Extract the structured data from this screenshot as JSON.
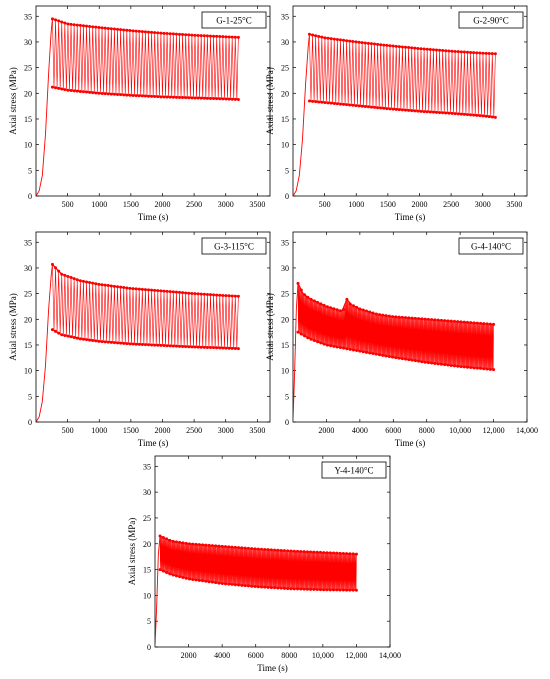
{
  "chart_data": [
    {
      "type": "line",
      "panel": "G-1-25°C",
      "xlabel": "Time (s)",
      "ylabel": "Axial stress (MPa)",
      "xlim": [
        0,
        3700
      ],
      "ylim": [
        0,
        37
      ],
      "xticks": [
        500,
        1000,
        1500,
        2000,
        2500,
        3000,
        3500
      ],
      "xtick_labels": [
        "500",
        "1000",
        "1500",
        "2000",
        "2500",
        "3000",
        "3500"
      ],
      "yticks": [
        0,
        5,
        10,
        15,
        20,
        25,
        30,
        35
      ],
      "series": [
        {
          "role": "ramp",
          "x": [
            0,
            50,
            100,
            150,
            200,
            240,
            260
          ],
          "y": [
            0,
            1,
            4,
            12,
            24,
            32,
            34.5
          ]
        },
        {
          "role": "max_envelope",
          "x": [
            260,
            500,
            1000,
            1500,
            2000,
            2500,
            3000,
            3200
          ],
          "y": [
            34.5,
            33.5,
            32.8,
            32.2,
            31.7,
            31.3,
            31.0,
            30.9
          ]
        },
        {
          "role": "min_envelope",
          "x": [
            260,
            500,
            1000,
            1500,
            2000,
            2500,
            3000,
            3200
          ],
          "y": [
            21.2,
            20.6,
            20.0,
            19.6,
            19.3,
            19.1,
            18.9,
            18.8
          ]
        }
      ],
      "cycles": 60,
      "color": "#ff0000"
    },
    {
      "type": "line",
      "panel": "G-2-90°C",
      "xlabel": "Time (s)",
      "ylabel": "Axial stress (MPa)",
      "xlim": [
        0,
        3700
      ],
      "ylim": [
        0,
        37
      ],
      "xticks": [
        500,
        1000,
        1500,
        2000,
        2500,
        3000,
        3500
      ],
      "xtick_labels": [
        "500",
        "1000",
        "1500",
        "2000",
        "2500",
        "3000",
        "3500"
      ],
      "yticks": [
        0,
        5,
        10,
        15,
        20,
        25,
        30,
        35
      ],
      "series": [
        {
          "role": "ramp",
          "x": [
            0,
            50,
            100,
            150,
            200,
            240,
            260
          ],
          "y": [
            0,
            1,
            4,
            11,
            22,
            29,
            31.5
          ]
        },
        {
          "role": "max_envelope",
          "x": [
            260,
            500,
            1000,
            1500,
            2000,
            2500,
            3000,
            3200
          ],
          "y": [
            31.5,
            30.8,
            30.0,
            29.3,
            28.7,
            28.2,
            27.8,
            27.7
          ]
        },
        {
          "role": "min_envelope",
          "x": [
            260,
            500,
            1000,
            1500,
            2000,
            2500,
            3000,
            3200
          ],
          "y": [
            18.5,
            18.2,
            17.6,
            17.0,
            16.5,
            16.1,
            15.6,
            15.3
          ]
        }
      ],
      "cycles": 60,
      "color": "#ff0000"
    },
    {
      "type": "line",
      "panel": "G-3-115°C",
      "xlabel": "Time (s)",
      "ylabel": "Axial stress (MPa)",
      "xlim": [
        0,
        3700
      ],
      "ylim": [
        0,
        37
      ],
      "xticks": [
        500,
        1000,
        1500,
        2000,
        2500,
        3000,
        3500
      ],
      "xtick_labels": [
        "500",
        "1000",
        "1500",
        "2000",
        "2500",
        "3000",
        "3500"
      ],
      "yticks": [
        0,
        5,
        10,
        15,
        20,
        25,
        30,
        35
      ],
      "series": [
        {
          "role": "ramp",
          "x": [
            0,
            50,
            100,
            150,
            200,
            240,
            260
          ],
          "y": [
            0,
            1,
            4,
            11,
            22,
            28.5,
            30.7
          ]
        },
        {
          "role": "max_envelope",
          "x": [
            260,
            400,
            700,
            1000,
            1500,
            2000,
            2500,
            3000,
            3200
          ],
          "y": [
            30.7,
            28.8,
            27.5,
            26.8,
            26.0,
            25.5,
            25.0,
            24.6,
            24.5
          ]
        },
        {
          "role": "min_envelope",
          "x": [
            260,
            400,
            700,
            1000,
            1500,
            2000,
            2500,
            3000,
            3200
          ],
          "y": [
            18.0,
            17.0,
            16.2,
            15.7,
            15.2,
            14.9,
            14.6,
            14.4,
            14.3
          ]
        }
      ],
      "cycles": 60,
      "color": "#ff0000"
    },
    {
      "type": "line",
      "panel": "G-4-140°C",
      "xlabel": "Time (s)",
      "ylabel": "Axial stress (MPa)",
      "xlim": [
        0,
        14000
      ],
      "ylim": [
        0,
        37
      ],
      "xticks": [
        2000,
        4000,
        6000,
        8000,
        10000,
        12000,
        14000
      ],
      "xtick_labels": [
        "2000",
        "4000",
        "6000",
        "8000",
        "10,000",
        "12,000",
        "14,000"
      ],
      "yticks": [
        0,
        5,
        10,
        15,
        20,
        25,
        30,
        35
      ],
      "series": [
        {
          "role": "ramp",
          "x": [
            0,
            100,
            200,
            300
          ],
          "y": [
            0,
            10,
            22,
            27
          ]
        },
        {
          "role": "max_envelope",
          "x": [
            300,
            600,
            1000,
            2000,
            3000,
            3200,
            3400,
            4000,
            5000,
            6000,
            8000,
            10000,
            12000
          ],
          "y": [
            27.0,
            25.0,
            24.0,
            22.5,
            21.5,
            24.0,
            23.0,
            22.0,
            21.0,
            20.5,
            20.0,
            19.5,
            19.0
          ]
        },
        {
          "role": "min_envelope",
          "x": [
            300,
            1000,
            2000,
            4000,
            6000,
            8000,
            10000,
            12000
          ],
          "y": [
            17.5,
            16.2,
            15.0,
            13.8,
            12.6,
            11.6,
            10.8,
            10.2
          ]
        }
      ],
      "cycles": 240,
      "color": "#ff0000"
    },
    {
      "type": "line",
      "panel": "Y-4-140°C",
      "xlabel": "Time (s)",
      "ylabel": "Axial stress (MPa)",
      "xlim": [
        0,
        14000
      ],
      "ylim": [
        0,
        37
      ],
      "xticks": [
        2000,
        4000,
        6000,
        8000,
        10000,
        12000,
        14000
      ],
      "xtick_labels": [
        "2000",
        "4000",
        "6000",
        "8000",
        "10,000",
        "12,000",
        "14,000"
      ],
      "yticks": [
        0,
        5,
        10,
        15,
        20,
        25,
        30,
        35
      ],
      "series": [
        {
          "role": "ramp",
          "x": [
            0,
            100,
            200,
            300
          ],
          "y": [
            0,
            8,
            18,
            21.5
          ]
        },
        {
          "role": "max_envelope",
          "x": [
            300,
            1000,
            2000,
            4000,
            6000,
            8000,
            10000,
            12000
          ],
          "y": [
            21.5,
            20.5,
            20.0,
            19.5,
            19.0,
            18.6,
            18.3,
            18.0
          ]
        },
        {
          "role": "min_envelope",
          "x": [
            300,
            1000,
            2000,
            4000,
            6000,
            8000,
            10000,
            12000
          ],
          "y": [
            15.0,
            14.0,
            13.2,
            12.3,
            11.7,
            11.3,
            11.1,
            11.0
          ]
        }
      ],
      "cycles": 240,
      "color": "#ff0000"
    }
  ]
}
